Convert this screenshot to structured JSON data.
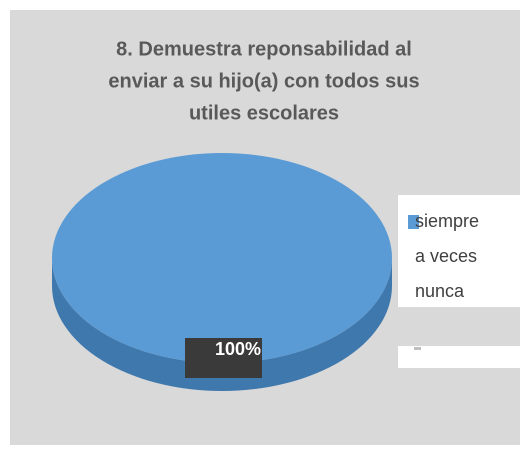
{
  "chart_data": {
    "type": "pie",
    "title": [
      "8. Demuestra reponsabilidad al",
      "enviar a su hijo(a) con todos sus",
      "utiles escolares"
    ],
    "categories": [
      "siempre",
      "a veces",
      "nunca"
    ],
    "values": [
      100,
      0,
      0
    ],
    "value_labels": [
      "100%",
      null,
      null
    ],
    "color": "#5b9bd5"
  }
}
